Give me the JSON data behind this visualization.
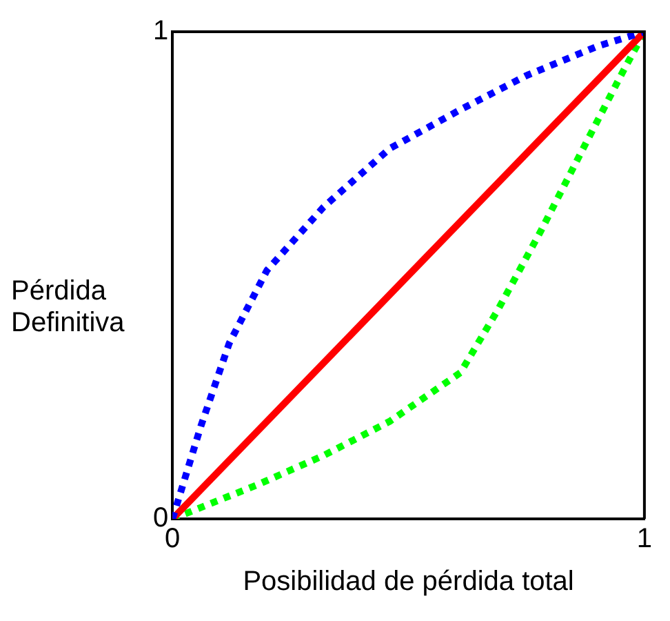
{
  "chart_data": {
    "type": "line",
    "xlabel": "Posibilidad de pérdida total",
    "ylabel": "Pérdida Definitiva",
    "xlim": [
      0,
      1
    ],
    "xticks": [
      0,
      1
    ],
    "ylim": [
      0,
      1
    ],
    "yticks": [
      0,
      1
    ],
    "legend": false,
    "marker": "none",
    "series": [
      {
        "color": "#0000ff",
        "line_style": "dotted",
        "x": [
          0,
          0.06,
          0.12,
          0.2,
          0.32,
          0.46,
          0.61,
          0.75,
          0.9,
          1
        ],
        "values": [
          0,
          0.19,
          0.36,
          0.51,
          0.64,
          0.76,
          0.84,
          0.91,
          0.97,
          1
        ]
      },
      {
        "color": "#ff0000",
        "line_style": "solid",
        "x": [
          0,
          1
        ],
        "values": [
          0,
          1
        ]
      },
      {
        "color": "#00ff00",
        "line_style": "dotted",
        "x": [
          0,
          0.18,
          0.32,
          0.46,
          0.61,
          0.69,
          0.78,
          0.87,
          0.95,
          1
        ],
        "values": [
          0,
          0.07,
          0.13,
          0.2,
          0.3,
          0.43,
          0.59,
          0.76,
          0.91,
          1
        ]
      }
    ]
  }
}
